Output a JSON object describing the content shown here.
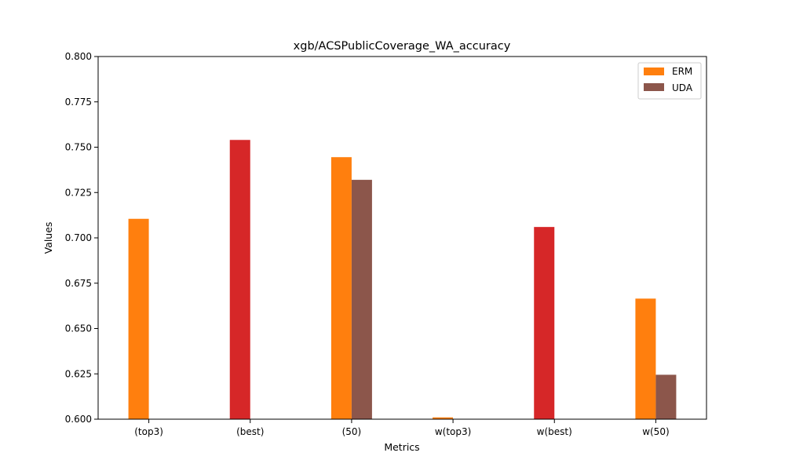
{
  "chart_data": {
    "type": "bar",
    "title": "xgb/ACSPublicCoverage_WA_accuracy",
    "xlabel": "Metrics",
    "ylabel": "Values",
    "ylim": [
      0.6,
      0.8
    ],
    "yticks": [
      "0.600",
      "0.625",
      "0.650",
      "0.675",
      "0.700",
      "0.725",
      "0.750",
      "0.775",
      "0.800"
    ],
    "categories": [
      "(top3)",
      "(best)",
      "(50)",
      "w(top3)",
      "w(best)",
      "w(50)"
    ],
    "series": [
      {
        "name": "ERM",
        "color": "#ff7f0e",
        "values": [
          0.7105,
          null,
          0.7445,
          0.601,
          null,
          0.6665
        ]
      },
      {
        "name": "UDA",
        "color": "#8c564b",
        "values": [
          null,
          null,
          0.732,
          null,
          null,
          0.6245
        ]
      },
      {
        "name": "",
        "color": "#d62728",
        "values": [
          null,
          0.754,
          null,
          null,
          0.706,
          null
        ]
      }
    ],
    "legend": {
      "position": "top-right",
      "entries": [
        "ERM",
        "UDA"
      ]
    },
    "grid": false
  }
}
